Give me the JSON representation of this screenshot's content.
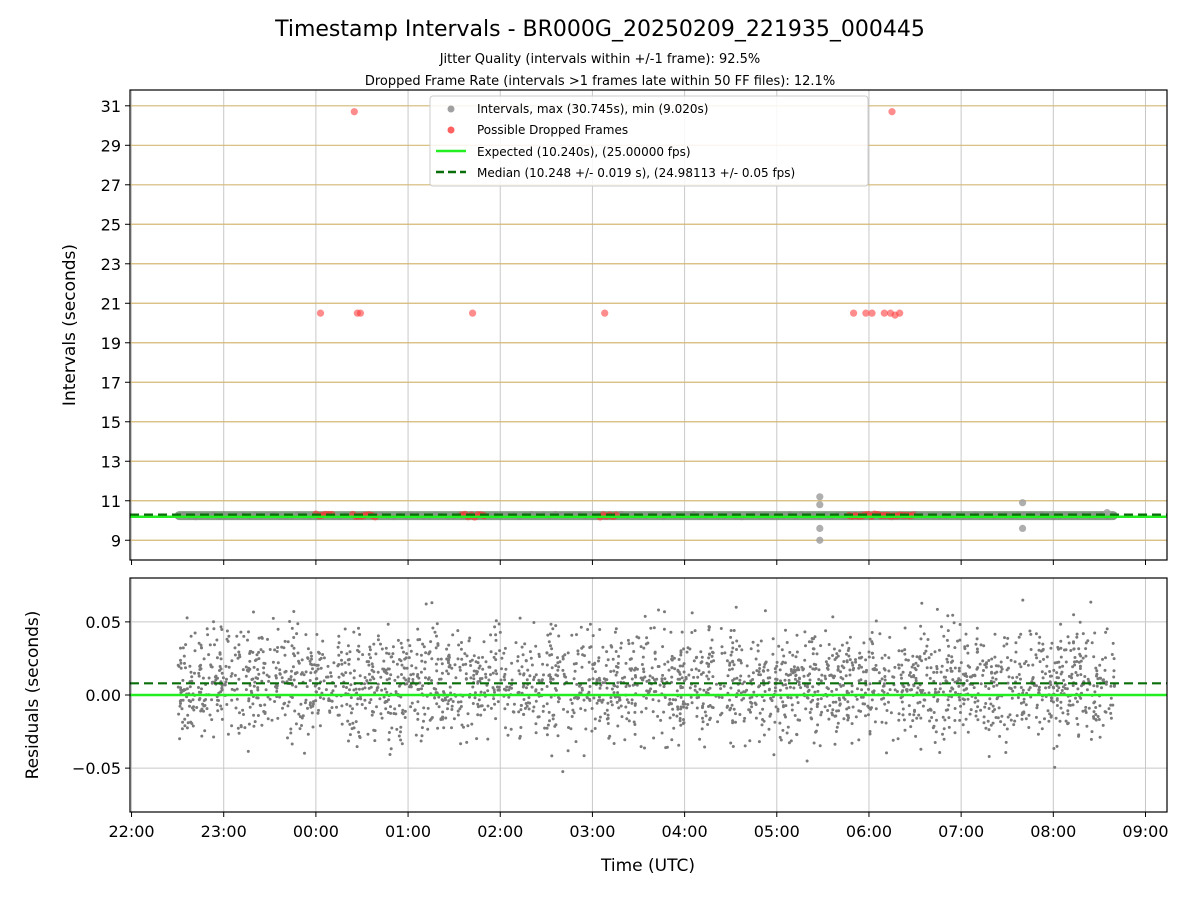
{
  "chart_data": [
    {
      "type": "scatter",
      "title": "Timestamp Intervals - BR000G_20250209_221935_000445",
      "subtitle_lines": [
        "Jitter Quality (intervals within +/-1 frame): 92.5%",
        "Dropped Frame Rate (intervals >1 frames late within 50 FF files): 12.1%"
      ],
      "xlabel": "",
      "ylabel": "Intervals (seconds)",
      "x_time_range": [
        "2025-02-09 21:59",
        "2025-02-10 09:14"
      ],
      "ylim": [
        8.0,
        31.8
      ],
      "y_ticks": [
        9,
        11,
        13,
        15,
        17,
        19,
        21,
        23,
        25,
        27,
        29,
        31
      ],
      "grid": true,
      "y_grid_color": "#d4b974",
      "x_grid_color": "#c8c8c8",
      "legend_position": "top-center",
      "legend": [
        {
          "label": "Intervals, max (30.745s), min (9.020s)",
          "marker": "dot",
          "color": "#a0a0a0"
        },
        {
          "label": "Possible Dropped Frames",
          "marker": "dot",
          "color": "#ff5050"
        },
        {
          "label": "Expected (10.240s), (25.00000 fps)",
          "marker": "line",
          "color": "#22ee22"
        },
        {
          "label": "Median (10.248 +/- 0.019 s), (24.98113 +/- 0.05 fps)",
          "marker": "dash",
          "color": "#0a6e0a"
        }
      ],
      "expected_y": 10.24,
      "median_y": 10.248,
      "series": [
        {
          "name": "Intervals, max (30.745s), min (9.020s)",
          "kind": "band",
          "t_start": "2025-02-09 22:30",
          "t_end": "2025-02-10 08:40",
          "value": 10.25,
          "outliers": [
            {
              "t": "2025-02-10 05:28",
              "y": 11.2
            },
            {
              "t": "2025-02-10 05:28",
              "y": 10.8
            },
            {
              "t": "2025-02-10 05:28",
              "y": 9.6
            },
            {
              "t": "2025-02-10 05:28",
              "y": 9.0
            },
            {
              "t": "2025-02-10 07:40",
              "y": 10.9
            },
            {
              "t": "2025-02-10 07:40",
              "y": 9.6
            },
            {
              "t": "2025-02-10 08:35",
              "y": 10.4
            }
          ]
        },
        {
          "name": "Possible Dropped Frames",
          "points": [
            {
              "t": "2025-02-10 00:03",
              "y": 20.5
            },
            {
              "t": "2025-02-10 00:25",
              "y": 30.7
            },
            {
              "t": "2025-02-10 00:27",
              "y": 20.5
            },
            {
              "t": "2025-02-10 00:29",
              "y": 20.5
            },
            {
              "t": "2025-02-10 01:42",
              "y": 20.5
            },
            {
              "t": "2025-02-10 03:08",
              "y": 20.5
            },
            {
              "t": "2025-02-10 05:50",
              "y": 20.5
            },
            {
              "t": "2025-02-10 05:58",
              "y": 20.5
            },
            {
              "t": "2025-02-10 06:02",
              "y": 20.5
            },
            {
              "t": "2025-02-10 06:10",
              "y": 20.5
            },
            {
              "t": "2025-02-10 06:14",
              "y": 20.5
            },
            {
              "t": "2025-02-10 06:17",
              "y": 20.4
            },
            {
              "t": "2025-02-10 06:20",
              "y": 20.5
            },
            {
              "t": "2025-02-10 06:15",
              "y": 30.7
            }
          ],
          "clusters_at_10_25": [
            [
              "2025-02-10 00:00",
              "2025-02-10 00:12"
            ],
            [
              "2025-02-10 00:24",
              "2025-02-10 00:40"
            ],
            [
              "2025-02-10 01:35",
              "2025-02-10 01:50"
            ],
            [
              "2025-02-10 03:05",
              "2025-02-10 03:17"
            ],
            [
              "2025-02-10 05:47",
              "2025-02-10 06:30"
            ]
          ]
        }
      ]
    },
    {
      "type": "scatter",
      "xlabel": "Time (UTC)",
      "ylabel": "Residuals (seconds)",
      "x_time_range": [
        "2025-02-09 21:59",
        "2025-02-10 09:14"
      ],
      "ylim": [
        -0.08,
        0.08
      ],
      "y_ticks": [
        -0.05,
        0.0,
        0.05
      ],
      "y_tick_labels": [
        "−0.05",
        "0.00",
        "0.05"
      ],
      "x_ticks": [
        "22:00",
        "23:00",
        "00:00",
        "01:00",
        "02:00",
        "03:00",
        "04:00",
        "05:00",
        "06:00",
        "07:00",
        "08:00",
        "09:00"
      ],
      "grid": true,
      "expected_residual": 0.0,
      "median_residual": 0.008,
      "series": [
        {
          "name": "Residuals",
          "kind": "cloud",
          "t_start": "2025-02-09 22:30",
          "t_end": "2025-02-10 08:40",
          "core_range": [
            -0.025,
            0.04
          ],
          "extreme_range": [
            -0.075,
            0.078
          ],
          "color": "#7a7a7a"
        }
      ]
    }
  ]
}
